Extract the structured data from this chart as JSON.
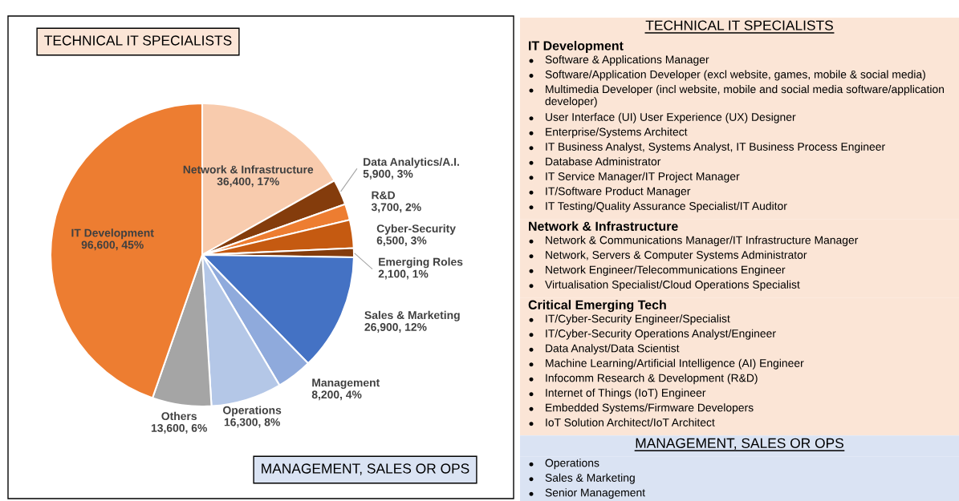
{
  "chart_data": [
    {
      "type": "pie",
      "categories": [
        "Network & Infrastructure",
        "Data Analytics/A.I.",
        "R&D",
        "Cyber-Security",
        "Emerging Roles",
        "Sales & Marketing",
        "Management",
        "Operations",
        "Others",
        "IT Development"
      ],
      "values": [
        36400,
        5900,
        3700,
        6500,
        2100,
        26900,
        8200,
        16300,
        13600,
        96600
      ],
      "value_labels": [
        "36,400, 17%",
        "5,900, 3%",
        "3,700, 2%",
        "6,500, 3%",
        "2,100, 1%",
        "26,900, 12%",
        "8,200, 4%",
        "16,300, 8%",
        "13,600, 6%",
        "96,600, 45%"
      ],
      "colors": [
        "#f8cbad",
        "#843c0c",
        "#ed7d31",
        "#c55a11",
        "#843c0c",
        "#4472c4",
        "#8faadc",
        "#b4c7e7",
        "#a5a5a5",
        "#ed7d31"
      ],
      "annotations": [
        "TECHNICAL IT SPECIALISTS",
        "MANAGEMENT, SALES OR OPS"
      ]
    },
    {
      "type": "other",
      "title": "TECHNICAL IT SPECIALISTS",
      "color": "#fbe5d6"
    },
    {
      "type": "other",
      "title": "IT Development",
      "color": "#fbe5d6",
      "annotations": [
        "Software & Applications Manager",
        "Software/Application Developer (excl website, games, mobile & social media)",
        "Multimedia Developer (incl website, mobile and social media software/application developer)",
        "User Interface (UI) User Experience (UX) Designer",
        "Enterprise/Systems Architect",
        "IT Business Analyst, Systems Analyst, IT Business Process Engineer",
        "Database Administrator",
        "IT Service Manager/IT Project Manager",
        "IT/Software Product Manager",
        "IT Testing/Quality Assurance Specialist/IT Auditor"
      ]
    },
    {
      "type": "other",
      "title": "Network & Infrastructure",
      "color": "#fbe5d6",
      "annotations": [
        "Network & Communications Manager/IT Infrastructure Manager",
        "Network, Servers & Computer Systems Administrator",
        "Network Engineer/Telecommunications Engineer",
        "Virtualisation Specialist/Cloud Operations Specialist"
      ]
    },
    {
      "type": "other",
      "title": "Critical Emerging Tech",
      "color": "#fbe5d6",
      "annotations": [
        "IT/Cyber-Security Engineer/Specialist",
        "IT/Cyber-Security Operations Analyst/Engineer",
        "Data Analyst/Data Scientist",
        "Machine Learning/Artificial Intelligence (AI) Engineer",
        "Infocomm Research & Development (R&D)",
        "Internet of Things (IoT) Engineer",
        "Embedded Systems/Firmware Developers",
        "IoT Solution Architect/IoT Architect"
      ]
    },
    {
      "type": "other",
      "title": "MANAGEMENT, SALES OR OPS",
      "color": "#dae3f3"
    },
    {
      "type": "other",
      "color": "#dae3f3",
      "annotations": [
        "Operations",
        "Sales & Marketing",
        "Senior Management"
      ]
    }
  ]
}
